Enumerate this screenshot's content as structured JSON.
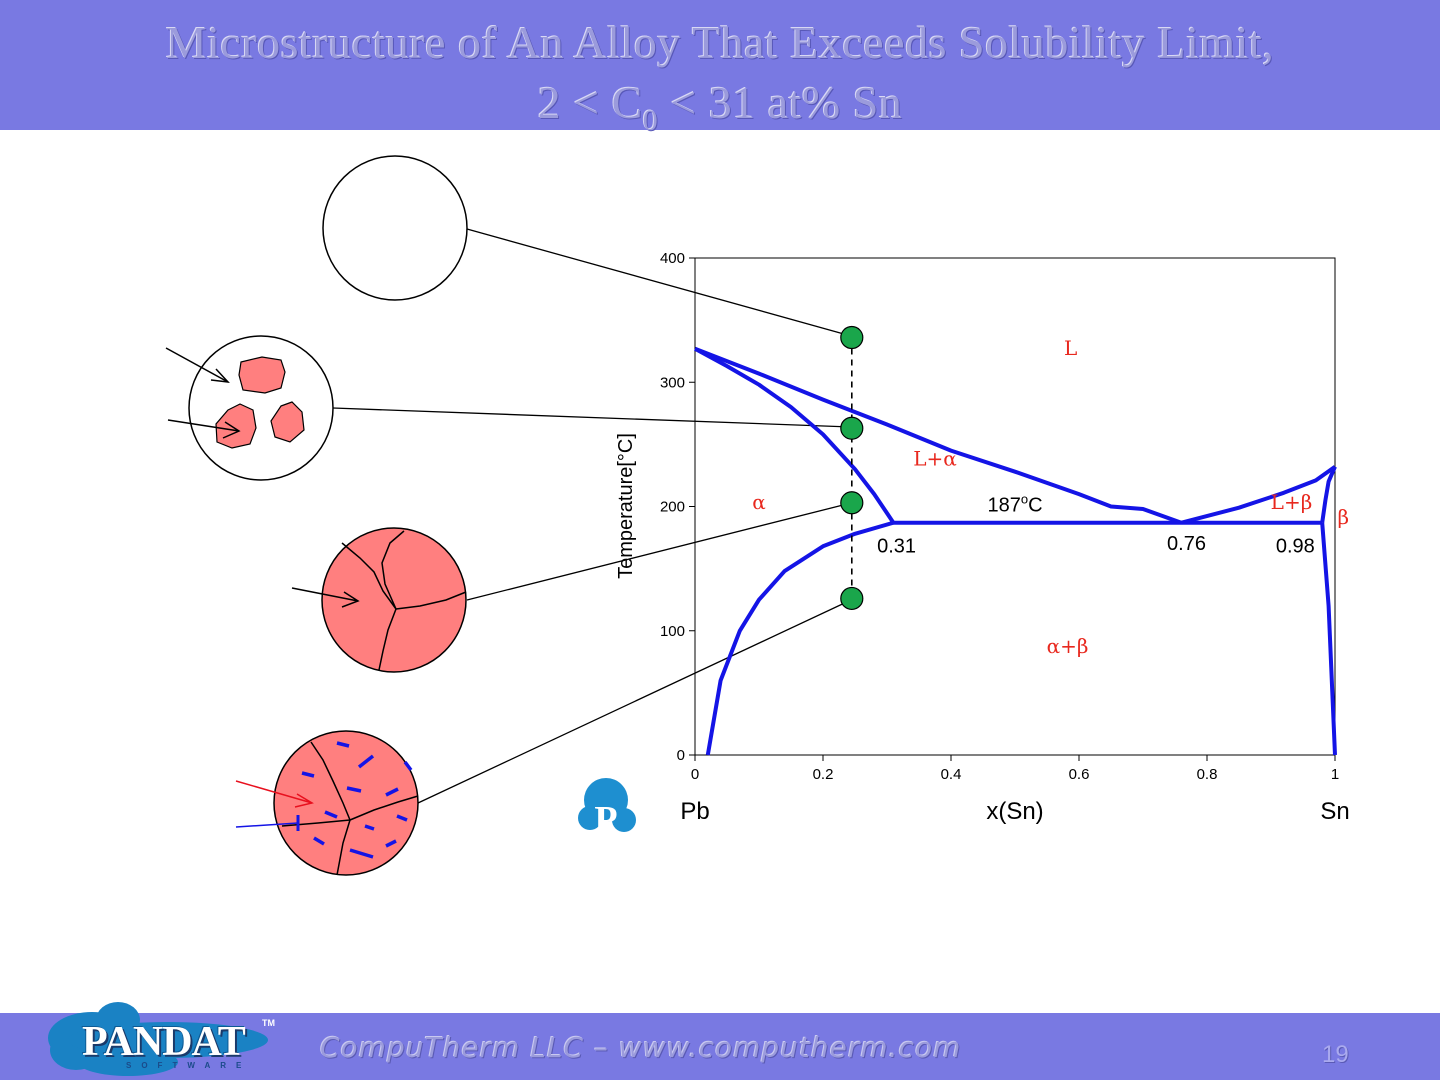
{
  "title": {
    "line1": "Microstructure of An Alloy That Exceeds Solubility Limit,",
    "line2_pre": "2 < C",
    "line2_sub": "0",
    "line2_post": " < 31 at% Sn"
  },
  "footer": {
    "text": "CompuTherm LLC – www.computherm.com",
    "page": "19",
    "logo_word": "PANDAT",
    "logo_sub": "SOFTWARE",
    "logo_tm": "TM"
  },
  "colors": {
    "header_bg": "#7979e2",
    "phase_line": "#1414e6",
    "grain_fill": "#ff7f7f",
    "green_point": "#1aa64b",
    "label_red": "#e8281e"
  },
  "chart_data": {
    "type": "line",
    "ylabel": "Temperature[°C]",
    "xlabel": "x(Sn)",
    "xlim": [
      0,
      1
    ],
    "ylim": [
      0,
      400
    ],
    "x_ticks": [
      0,
      0.2,
      0.4,
      0.6,
      0.8,
      1
    ],
    "y_ticks": [
      0,
      100,
      200,
      300,
      400
    ],
    "x_tick_labels": [
      "0",
      "0.2",
      "0.4",
      "0.6",
      "0.8",
      "1"
    ],
    "y_tick_labels": [
      "0",
      "100",
      "200",
      "300",
      "400"
    ],
    "grid": false,
    "element_left": "Pb",
    "element_right": "Sn",
    "series": [
      {
        "x": [
          0,
          0.1,
          0.2,
          0.3,
          0.4,
          0.5,
          0.6,
          0.65,
          0.7,
          0.76
        ],
        "y": [
          327,
          307,
          286,
          266,
          245,
          228,
          210,
          200,
          198,
          187
        ]
      },
      {
        "x": [
          0,
          0.05,
          0.1,
          0.15,
          0.2,
          0.25,
          0.28,
          0.31
        ],
        "y": [
          327,
          313,
          298,
          280,
          258,
          230,
          210,
          187
        ]
      },
      {
        "x": [
          0.02,
          0.04,
          0.07,
          0.1,
          0.14,
          0.2,
          0.25,
          0.31
        ],
        "y": [
          0,
          60,
          100,
          125,
          148,
          168,
          178,
          187
        ]
      },
      {
        "x": [
          0.31,
          0.98
        ],
        "y": [
          187,
          187
        ]
      },
      {
        "x": [
          0.76,
          0.85,
          0.92,
          0.97,
          1.0
        ],
        "y": [
          187,
          199,
          211,
          221,
          232
        ]
      },
      {
        "x": [
          0.98,
          0.985,
          0.99,
          1.0
        ],
        "y": [
          187,
          205,
          220,
          232
        ]
      },
      {
        "x": [
          0.98,
          0.99,
          0.995,
          1.0
        ],
        "y": [
          187,
          120,
          60,
          0
        ]
      }
    ],
    "composition_line": {
      "x": 0.245,
      "y": [
        336,
        126
      ]
    },
    "points": [
      {
        "x": 0.245,
        "y": 336
      },
      {
        "x": 0.245,
        "y": 263
      },
      {
        "x": 0.245,
        "y": 203
      },
      {
        "x": 0.245,
        "y": 126
      }
    ],
    "phase_labels": [
      {
        "text": "L",
        "x": 0.587,
        "y": 322
      },
      {
        "text": "L+α",
        "x": 0.375,
        "y": 233
      },
      {
        "text": "α",
        "x": 0.1,
        "y": 198
      },
      {
        "text": "α+β",
        "x": 0.582,
        "y": 82
      },
      {
        "text": "L+β",
        "x": 0.932,
        "y": 198
      },
      {
        "text": "β",
        "x": 1.013,
        "y": 186
      }
    ],
    "annotations": [
      {
        "text": "187°C",
        "x": 0.5,
        "y": 196,
        "style": "celsius"
      },
      {
        "text": "0.31",
        "x": 0.315,
        "y": 163
      },
      {
        "text": "0.76",
        "x": 0.768,
        "y": 165
      },
      {
        "text": "0.98",
        "x": 0.938,
        "y": 163
      }
    ]
  },
  "micrographs": [
    {
      "name": "liquid-micrograph",
      "grains": "none"
    },
    {
      "name": "liquid-alpha-micrograph",
      "grains": "three-particles"
    },
    {
      "name": "alpha-micrograph",
      "grains": "polycrystal"
    },
    {
      "name": "alpha-beta-micrograph",
      "grains": "polycrystal-with-precipitates"
    }
  ]
}
